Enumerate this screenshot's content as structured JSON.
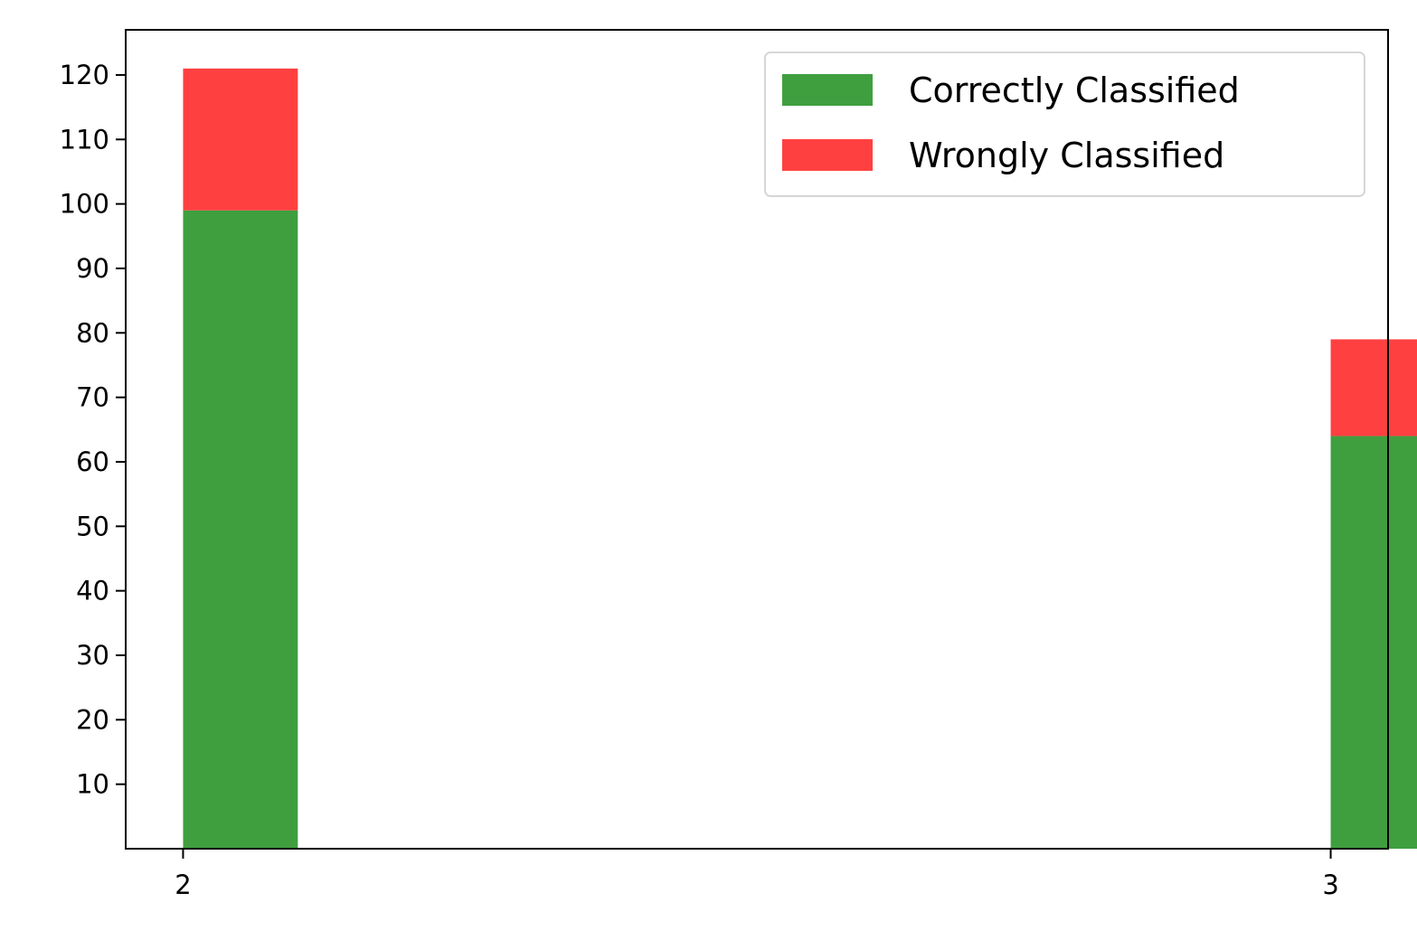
{
  "chart_data": {
    "type": "bar",
    "stacked": true,
    "x": [
      2,
      3
    ],
    "xticks": [
      "2",
      "3"
    ],
    "xlim": [
      1.95,
      3.05
    ],
    "ylim": [
      0,
      127
    ],
    "yticks": [
      "10",
      "20",
      "30",
      "40",
      "50",
      "60",
      "70",
      "80",
      "90",
      "100",
      "110",
      "120"
    ],
    "bar_width_data": 0.1,
    "series": [
      {
        "name": "Correctly Classified",
        "color": "#3f9f3f",
        "values": [
          99,
          64
        ]
      },
      {
        "name": "Wrongly Classified",
        "color": "#ff4040",
        "values": [
          22,
          15
        ]
      }
    ],
    "legend_position": "top-right",
    "grid": false,
    "title": "",
    "xlabel": "",
    "ylabel": ""
  }
}
